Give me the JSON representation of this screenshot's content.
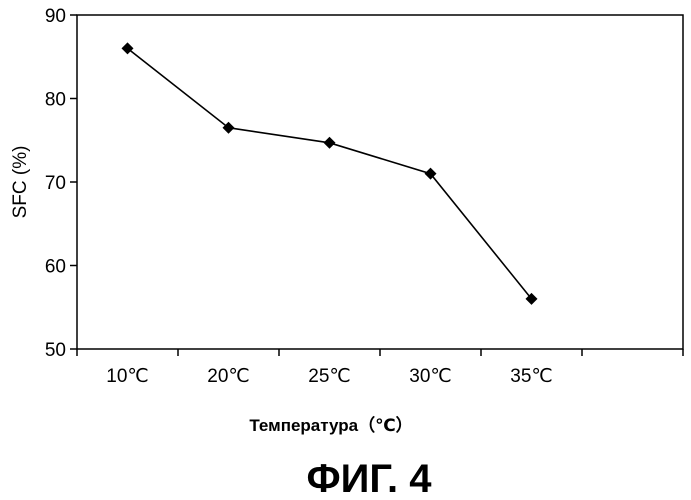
{
  "chart_data": {
    "type": "line",
    "categories": [
      "10℃",
      "20℃",
      "25℃",
      "30℃",
      "35℃"
    ],
    "values": [
      86,
      76.5,
      74.7,
      71,
      56
    ],
    "xlabel": "Температура（℃）",
    "ylabel": "SFC (%)",
    "ylim": [
      50,
      90
    ],
    "yticks": [
      "50",
      "60",
      "70",
      "80",
      "90"
    ],
    "marker": "diamond",
    "line_color": "#000000",
    "grid": false,
    "legend": "none"
  },
  "caption": "ФИГ. 4"
}
